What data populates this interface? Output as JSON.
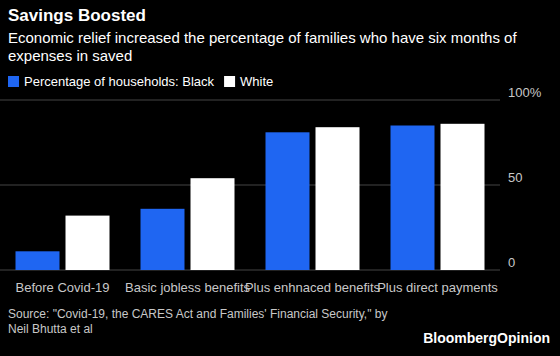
{
  "chart_data": {
    "type": "bar",
    "title": "Savings Boosted",
    "subtitle": "Economic relief increased the percentage of families who have six months of expenses in saved",
    "categories": [
      "Before Covid-19",
      "Basic jobless benefits",
      "Plus enhnaced benefits",
      "Plus direct payments"
    ],
    "series": [
      {
        "name": "Percentage of households: Black",
        "color": "#1f66f2",
        "values": [
          11,
          36,
          81,
          85
        ]
      },
      {
        "name": "White",
        "color": "#ffffff",
        "values": [
          32,
          54,
          84,
          86
        ]
      }
    ],
    "ylim": [
      0,
      100
    ],
    "yticks": [
      0,
      50,
      {
        "value": 100,
        "label": "100%"
      }
    ],
    "grid": true,
    "source": "Source: \"Covid-19, the CARES Act and Families' Financial Security,\" by Neil Bhutta et al",
    "branding": "BloombergOpinion"
  }
}
